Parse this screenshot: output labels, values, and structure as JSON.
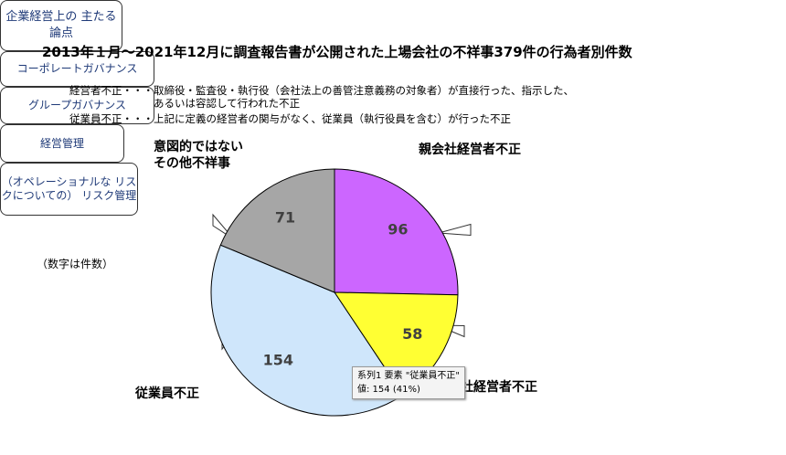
{
  "chart_data": {
    "type": "pie",
    "title": "2013年１月～2021年12月に調査報告書が公開された上場会社の不祥事379件の行為者別件数",
    "notes": [
      "経営者不正・・・取締役・監査役・執行役（会社法上の善管注意義務の対象者）が直接行った、指示した、\n　　　　　　　　あるいは容認して行われた不正",
      "従業員不正・・・上記に定義の経営者の関与がなく、従業員（執行役員を含む）が行った不正"
    ],
    "annotation": "（数字は件数）",
    "side_note": "企業経営上の\n主たる論点",
    "categories": [
      "親会社経営者不正",
      "子会社経営者不正",
      "従業員不正",
      "意図的ではない\nその他不祥事"
    ],
    "values": [
      96,
      58,
      154,
      71
    ],
    "colors": [
      "#cc66ff",
      "#ffff33",
      "#cfe6fb",
      "#a6a6a6"
    ],
    "callouts": [
      "コーポレートガバナンス",
      "グループガバナンス",
      "経営管理",
      "（オペレーショナルな\nリスクについての）\nリスク管理"
    ],
    "tooltip": [
      "系列1 要素 \"従業員不正\"",
      "値: 154 (41%)"
    ]
  }
}
